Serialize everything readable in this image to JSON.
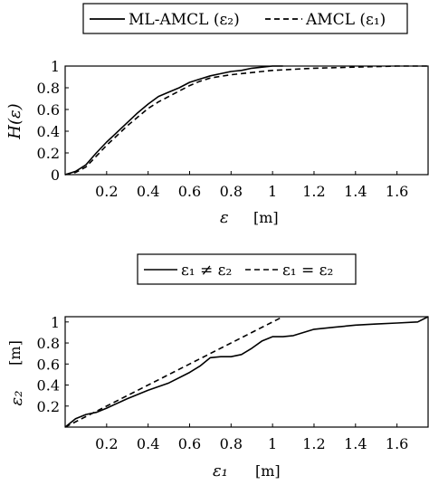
{
  "chart_data": [
    {
      "type": "line",
      "legend": {
        "placement": "top",
        "entries": [
          "ML-AMCL (ε₂)",
          "AMCL (ε₁)"
        ]
      },
      "xlabel": "ε",
      "xunit": "[m]",
      "ylabel": "H(ε)",
      "xlim": [
        0,
        1.75
      ],
      "ylim": [
        0,
        1
      ],
      "xticks": [
        "0.2",
        "0.4",
        "0.6",
        "0.8",
        "1",
        "1.2",
        "1.4",
        "1.6"
      ],
      "yticks": [
        "0",
        "0.2",
        "0.4",
        "0.6",
        "0.8",
        "1"
      ],
      "series": [
        {
          "name": "ML-AMCL (ε₂)",
          "style": "solid",
          "x": [
            0.0,
            0.05,
            0.1,
            0.15,
            0.2,
            0.25,
            0.3,
            0.35,
            0.4,
            0.45,
            0.5,
            0.55,
            0.6,
            0.65,
            0.7,
            0.75,
            0.8,
            0.85,
            0.9,
            0.95,
            1.0,
            1.05
          ],
          "y": [
            0.0,
            0.03,
            0.09,
            0.2,
            0.3,
            0.39,
            0.48,
            0.57,
            0.65,
            0.72,
            0.76,
            0.8,
            0.85,
            0.88,
            0.91,
            0.93,
            0.95,
            0.96,
            0.98,
            0.99,
            1.0,
            1.0
          ]
        },
        {
          "name": "AMCL (ε₁)",
          "style": "dashed",
          "x": [
            0.0,
            0.05,
            0.1,
            0.15,
            0.2,
            0.25,
            0.3,
            0.35,
            0.4,
            0.45,
            0.5,
            0.55,
            0.6,
            0.65,
            0.7,
            0.8,
            0.9,
            1.0,
            1.1,
            1.2,
            1.4,
            1.6,
            1.75
          ],
          "y": [
            0.0,
            0.02,
            0.07,
            0.17,
            0.27,
            0.36,
            0.45,
            0.53,
            0.61,
            0.67,
            0.72,
            0.77,
            0.82,
            0.86,
            0.89,
            0.92,
            0.94,
            0.96,
            0.97,
            0.98,
            0.99,
            1.0,
            1.0
          ]
        }
      ]
    },
    {
      "type": "line",
      "legend": {
        "placement": "top",
        "entries": [
          "ε₁ ≠ ε₂",
          "ε₁ = ε₂"
        ]
      },
      "xlabel": "ε₁",
      "xunit": "[m]",
      "ylabel": "ε₂",
      "yunit": "[m]",
      "xlim": [
        0,
        1.75
      ],
      "ylim": [
        0,
        1.05
      ],
      "xticks": [
        "0.2",
        "0.4",
        "0.6",
        "0.8",
        "1",
        "1.2",
        "1.4",
        "1.6"
      ],
      "yticks": [
        "0.2",
        "0.4",
        "0.6",
        "0.8",
        "1"
      ],
      "series": [
        {
          "name": "ε₁ ≠ ε₂",
          "style": "solid",
          "x": [
            0.0,
            0.05,
            0.1,
            0.15,
            0.2,
            0.3,
            0.4,
            0.5,
            0.6,
            0.65,
            0.7,
            0.75,
            0.8,
            0.85,
            0.9,
            0.95,
            1.0,
            1.05,
            1.1,
            1.2,
            1.3,
            1.4,
            1.5,
            1.6,
            1.7,
            1.75
          ],
          "y": [
            0.0,
            0.08,
            0.12,
            0.14,
            0.18,
            0.27,
            0.35,
            0.42,
            0.52,
            0.58,
            0.66,
            0.67,
            0.67,
            0.69,
            0.75,
            0.82,
            0.86,
            0.86,
            0.87,
            0.93,
            0.95,
            0.97,
            0.98,
            0.99,
            1.0,
            1.05
          ]
        },
        {
          "name": "ε₁ = ε₂",
          "style": "dashed",
          "x": [
            0.0,
            1.05
          ],
          "y": [
            0.0,
            1.05
          ]
        }
      ]
    }
  ]
}
